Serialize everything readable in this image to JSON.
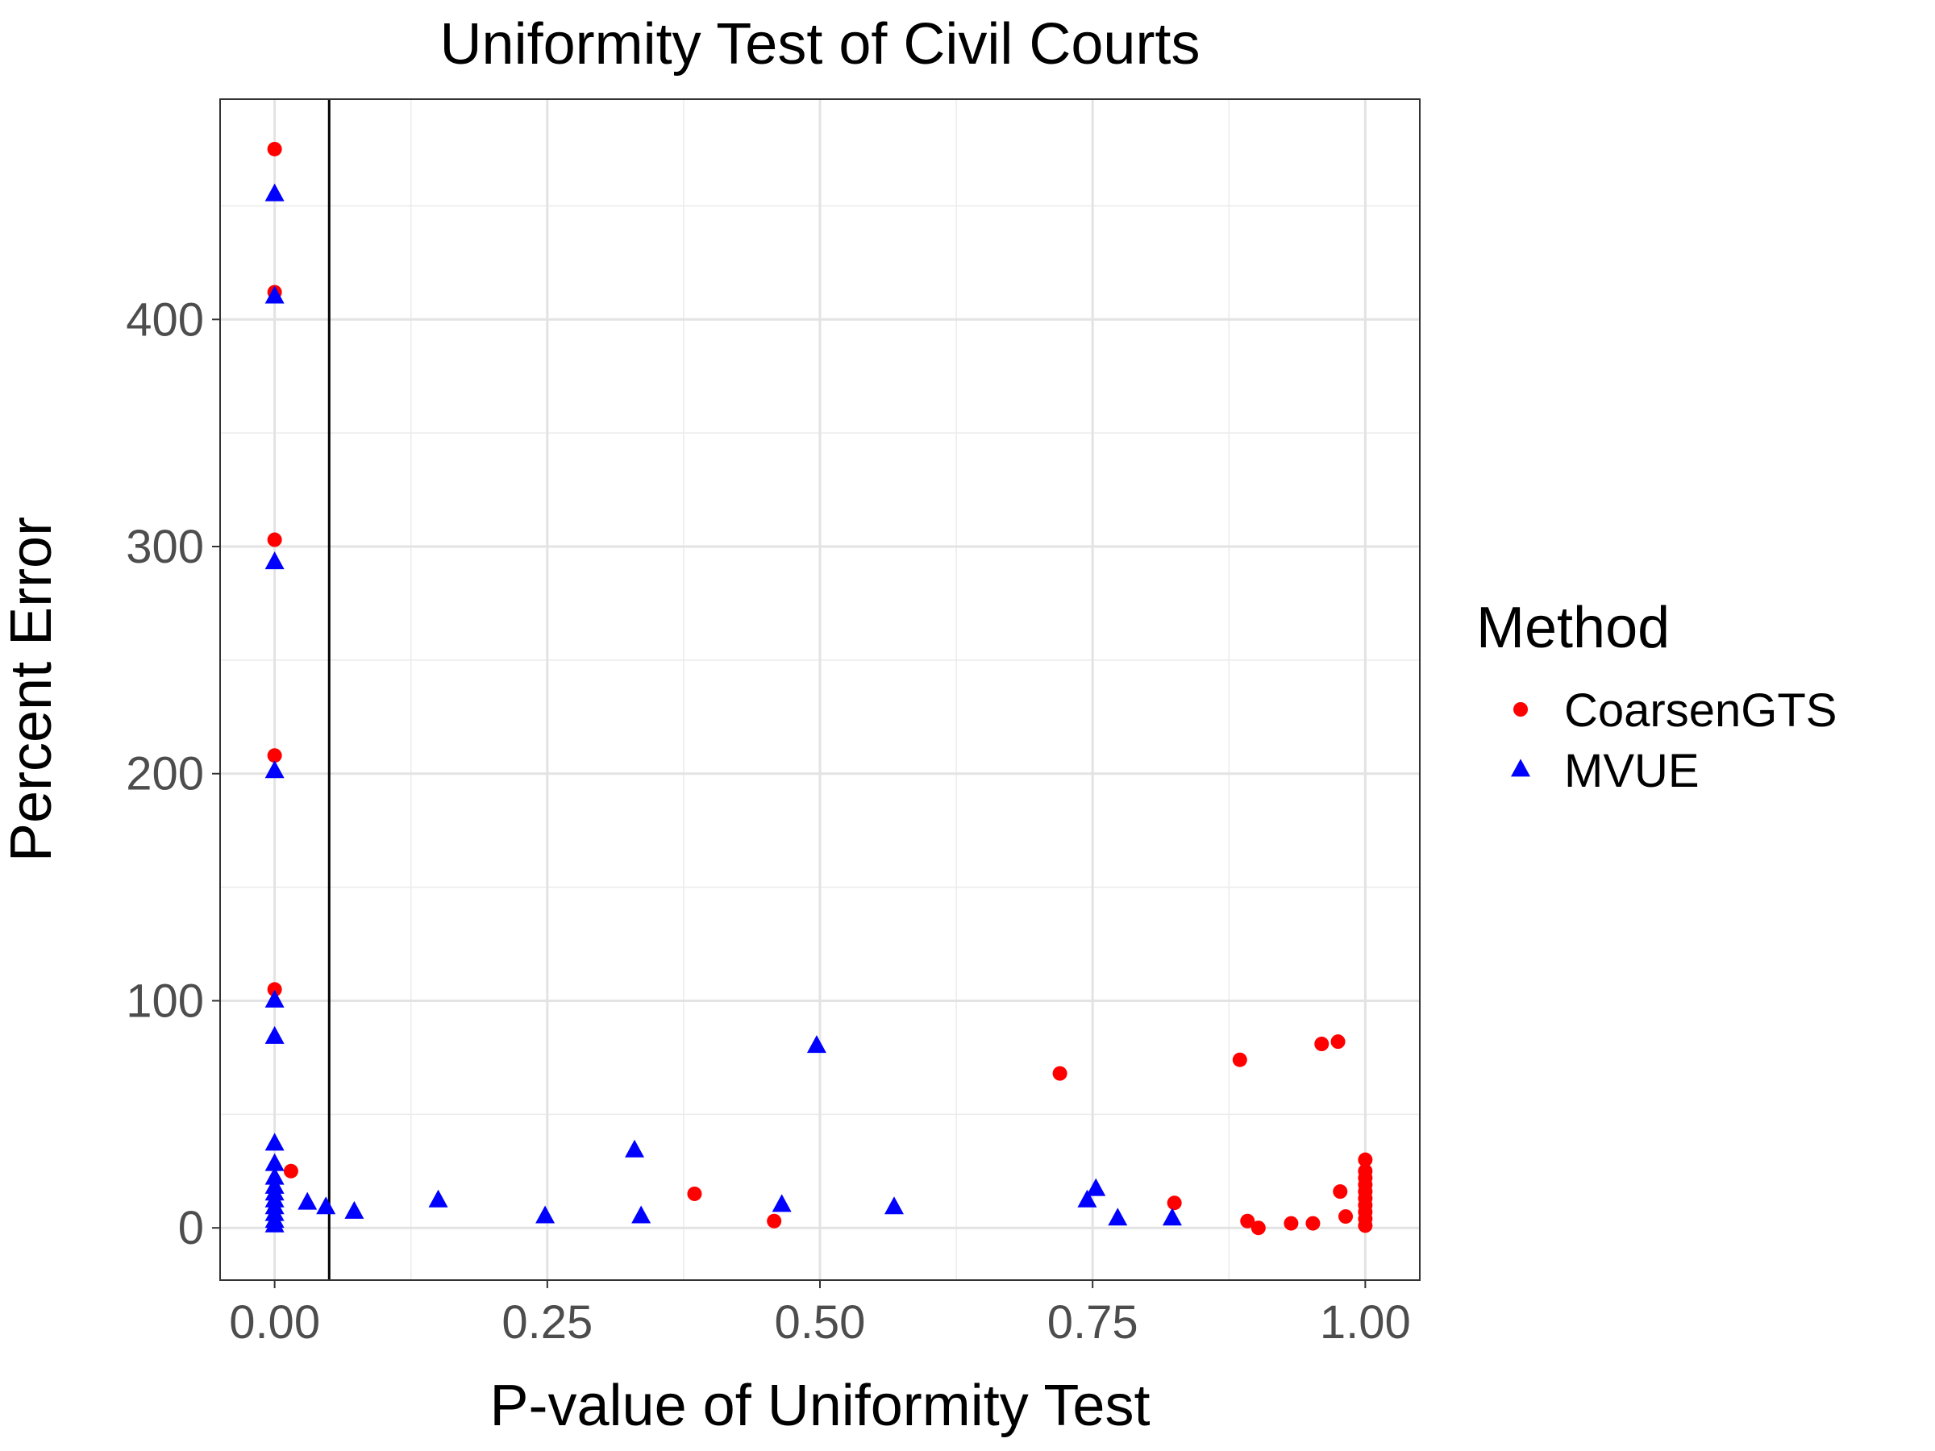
{
  "chart_data": {
    "type": "scatter",
    "title": "Uniformity Test of Civil Courts",
    "xlabel": "P-value of Uniformity Test",
    "ylabel": "Percent Error",
    "xlim": [
      -0.05,
      1.05
    ],
    "ylim": [
      -23,
      497
    ],
    "xticks": [
      0.0,
      0.25,
      0.5,
      0.75,
      1.0
    ],
    "xtick_labels": [
      "0.00",
      "0.25",
      "0.50",
      "0.75",
      "1.00"
    ],
    "yticks": [
      0,
      100,
      200,
      300,
      400
    ],
    "ytick_labels": [
      "0",
      "100",
      "200",
      "300",
      "400"
    ],
    "reference_vline_x": 0.05,
    "grid": true,
    "legend": {
      "title": "Method",
      "position": "right"
    },
    "series": [
      {
        "name": "CoarsenGTS",
        "color": "#ff0000",
        "marker": "circle",
        "points": [
          [
            0.0,
            475
          ],
          [
            0.0,
            412
          ],
          [
            0.0,
            303
          ],
          [
            0.0,
            208
          ],
          [
            0.0,
            105
          ],
          [
            0.015,
            25
          ],
          [
            0.385,
            15
          ],
          [
            0.458,
            3
          ],
          [
            0.72,
            68
          ],
          [
            0.825,
            11
          ],
          [
            0.885,
            74
          ],
          [
            0.892,
            3
          ],
          [
            0.902,
            0
          ],
          [
            0.932,
            2
          ],
          [
            0.952,
            2
          ],
          [
            0.96,
            81
          ],
          [
            0.975,
            82
          ],
          [
            0.977,
            16
          ],
          [
            0.982,
            5
          ],
          [
            1.0,
            30
          ],
          [
            1.0,
            25
          ],
          [
            1.0,
            22
          ],
          [
            1.0,
            19
          ],
          [
            1.0,
            16
          ],
          [
            1.0,
            13
          ],
          [
            1.0,
            10
          ],
          [
            1.0,
            7
          ],
          [
            1.0,
            4
          ],
          [
            1.0,
            1
          ]
        ]
      },
      {
        "name": "MVUE",
        "color": "#0000ff",
        "marker": "triangle",
        "points": [
          [
            0.0,
            455
          ],
          [
            0.0,
            410
          ],
          [
            0.0,
            293
          ],
          [
            0.0,
            201
          ],
          [
            0.0,
            100
          ],
          [
            0.0,
            84
          ],
          [
            0.0,
            37
          ],
          [
            0.0,
            28
          ],
          [
            0.0,
            22
          ],
          [
            0.0,
            18
          ],
          [
            0.0,
            15
          ],
          [
            0.0,
            12
          ],
          [
            0.0,
            9
          ],
          [
            0.0,
            6
          ],
          [
            0.0,
            3
          ],
          [
            0.0,
            1
          ],
          [
            0.03,
            11
          ],
          [
            0.047,
            9
          ],
          [
            0.073,
            7
          ],
          [
            0.15,
            12
          ],
          [
            0.248,
            5
          ],
          [
            0.33,
            34
          ],
          [
            0.336,
            5
          ],
          [
            0.465,
            10
          ],
          [
            0.497,
            80
          ],
          [
            0.568,
            9
          ],
          [
            0.745,
            12
          ],
          [
            0.753,
            17
          ],
          [
            0.773,
            4
          ],
          [
            0.823,
            4
          ]
        ]
      }
    ]
  }
}
